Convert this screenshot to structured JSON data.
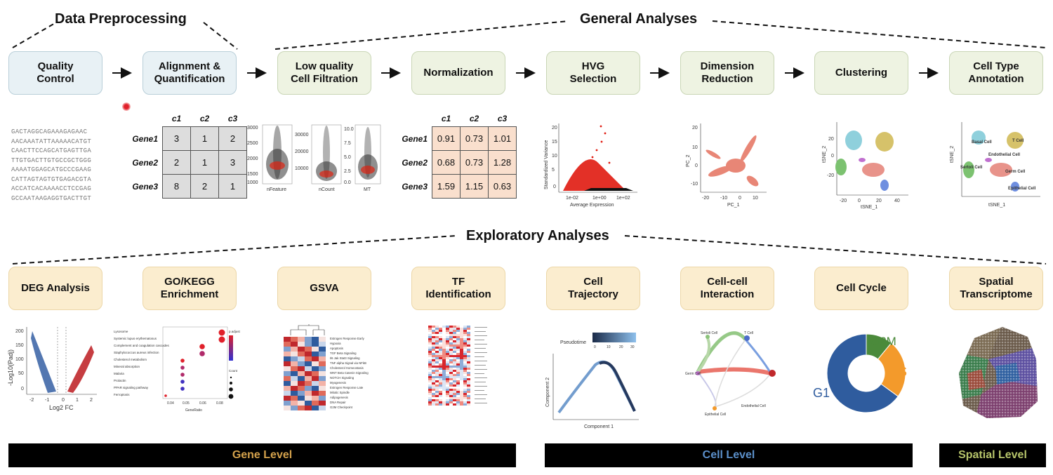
{
  "sections": {
    "preprocessing": "Data Preprocessing",
    "general": "General Analyses",
    "exploratory": "Exploratory Analyses"
  },
  "top_steps": [
    {
      "label": "Quality\nControl"
    },
    {
      "label": "Alignment &\nQuantification"
    },
    {
      "label": "Low quality\nCell Filtration"
    },
    {
      "label": "Normalization"
    },
    {
      "label": "HVG\nSelection"
    },
    {
      "label": "Dimension\nReduction"
    },
    {
      "label": "Clustering"
    },
    {
      "label": "Cell Type\nAnnotation"
    }
  ],
  "bottom_steps": [
    {
      "label": "DEG Analysis"
    },
    {
      "label": "GO/KEGG\nEnrichment"
    },
    {
      "label": "GSVA"
    },
    {
      "label": "TF\nIdentification"
    },
    {
      "label": "Cell\nTrajectory"
    },
    {
      "label": "Cell-cell\nInteraction"
    },
    {
      "label": "Cell Cycle"
    },
    {
      "label": "Spatial\nTranscriptome"
    }
  ],
  "sequences": [
    "GACTAGGCAGAAAGAGAAC",
    "AACAAATATTAAAAACATGT",
    "CAACTTCCAGCATGAGTTGA",
    "TTGTGACTTGTGCCGCTGGG",
    "AAAATGGAGCATGCCCGAAG",
    "CATTAGTAGTGTGAGACGTA",
    "ACCATCACAAAACCTCCGAG",
    "GCCAATAAGAGGTGACTTGT"
  ],
  "count_matrix": {
    "columns": [
      "c1",
      "c2",
      "c3"
    ],
    "rows": [
      {
        "gene": "Gene1",
        "values": [
          "3",
          "1",
          "2"
        ]
      },
      {
        "gene": "Gene2",
        "values": [
          "2",
          "1",
          "3"
        ]
      },
      {
        "gene": "Gene3",
        "values": [
          "8",
          "2",
          "1"
        ]
      }
    ]
  },
  "norm_matrix": {
    "columns": [
      "c1",
      "c2",
      "c3"
    ],
    "rows": [
      {
        "gene": "Gene1",
        "values": [
          "0.91",
          "0.73",
          "1.01"
        ]
      },
      {
        "gene": "Gene2",
        "values": [
          "0.68",
          "0.73",
          "1.28"
        ]
      },
      {
        "gene": "Gene3",
        "values": [
          "1.59",
          "1.15",
          "0.63"
        ]
      }
    ]
  },
  "violin": {
    "panels": [
      {
        "label": "nFeature",
        "ticks": [
          "3000",
          "2500",
          "2000",
          "1500",
          "1000"
        ]
      },
      {
        "label": "nCount",
        "ticks": [
          "30000",
          "20000",
          "10000"
        ]
      },
      {
        "label": "MT",
        "ticks": [
          "10.0",
          "7.5",
          "5.0",
          "2.5",
          "0.0"
        ]
      }
    ]
  },
  "hvg": {
    "xlabel": "Average Expression",
    "ylabel": "Standardized Variance",
    "yticks": [
      "20",
      "15",
      "10",
      "5",
      "0"
    ],
    "xticks": [
      "1e-02",
      "1e+00",
      "1e+02"
    ]
  },
  "pca": {
    "xlabel": "PC_1",
    "ylabel": "PC_2",
    "xticks": [
      "-20",
      "-10",
      "0",
      "10"
    ],
    "yticks": [
      "20",
      "10",
      "0",
      "-10"
    ]
  },
  "tsne": {
    "xlabel": "tSNE_1",
    "ylabel": "tSNE_2",
    "xticks": [
      "-20",
      "0",
      "20",
      "40"
    ],
    "yticks": [
      "20",
      "0",
      "-20"
    ]
  },
  "annot": {
    "xlabel": "tSNE_1",
    "ylabel": "tSNE_2",
    "cells": [
      "Basal Cell",
      "Endothelial Cell",
      "T Cell",
      "Germ Cell",
      "Sertoli Cell",
      "Epithelial Cell"
    ]
  },
  "volcano": {
    "xlabel": "Log2 FC",
    "ylabel": "-Log10(Padj)",
    "yticks": [
      "200",
      "150",
      "100",
      "50",
      "0"
    ],
    "xticks": [
      "-2",
      "-1",
      "0",
      "1",
      "2"
    ]
  },
  "dotplot": {
    "terms": [
      "Lysosome",
      "Systemic lupus erythematosus",
      "Complement and coagulation cascades",
      "Staphylococcus aureus infection",
      "Cholesterol metabolism",
      "Mineral absorption",
      "Malaria",
      "Prolactin",
      "PPAR signaling pathway",
      "Ferroptosis"
    ],
    "xlabel": "GeneRatio",
    "xticks": [
      "0.04",
      "0.05",
      "0.06",
      "0.08"
    ],
    "legend_title": "p.adjust",
    "size_title": "Count"
  },
  "gsva": {
    "terms": [
      "Estrogen Response Early",
      "Hypoxia",
      "Apoptosis",
      "TGF Beta Signaling",
      "Il6 Jak Stat3 Signaling",
      "TNF alpha Signal via NFkB",
      "Cholesterol Homeostasis",
      "WNT Beta Catenin Signaling",
      "NOTCH Signaling",
      "Myogenesis",
      "Estrogen Response Late",
      "Mitotic Spindle",
      "Adipogenesis",
      "DNA Repair",
      "G2M Checkpoint"
    ]
  },
  "trajectory": {
    "legend": "Pseudotime",
    "legend_ticks": [
      "0",
      "10",
      "20",
      "30"
    ],
    "xlabel": "Component 1",
    "ylabel": "Component 2"
  },
  "interaction": {
    "nodes": [
      "Germ Cell",
      "T Cell",
      "Sertoli Cell",
      "Endothelial Cell",
      "Epithelial Cell"
    ]
  },
  "cell_cycle": {
    "chart_data": {
      "type": "pie",
      "categories": [
        "G1",
        "G2M",
        "S"
      ],
      "values": [
        65,
        11,
        24
      ],
      "colors": [
        "#2f5c9e",
        "#4b8a3b",
        "#f39a2b"
      ]
    }
  },
  "levels": [
    {
      "label": "Gene Level",
      "color": "#d4a24c"
    },
    {
      "label": "Cell Level",
      "color": "#5b8fc9"
    },
    {
      "label": "Spatial Level",
      "color": "#b6c46a"
    }
  ],
  "colors": {
    "arrow": "#111111",
    "bar": "#000000"
  }
}
